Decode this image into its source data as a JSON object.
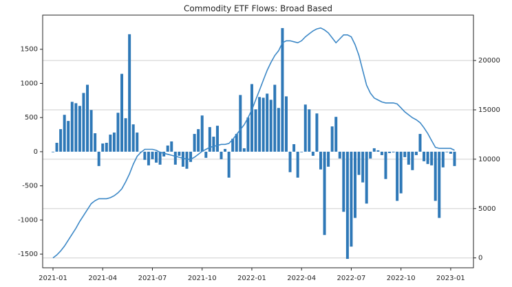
{
  "chart_data": {
    "type": "bar",
    "title": "Commodity ETF Flows: Broad Based",
    "categories": [
      "2021-01",
      null,
      null,
      null,
      null,
      null,
      null,
      null,
      null,
      null,
      null,
      null,
      null,
      "2021-04",
      null,
      null,
      null,
      null,
      null,
      null,
      null,
      null,
      null,
      null,
      null,
      null,
      "2021-07",
      null,
      null,
      null,
      null,
      null,
      null,
      null,
      null,
      null,
      null,
      null,
      null,
      "2021-10",
      null,
      null,
      null,
      null,
      null,
      null,
      null,
      null,
      null,
      null,
      null,
      null,
      "2022-01",
      null,
      null,
      null,
      null,
      null,
      null,
      null,
      null,
      null,
      null,
      null,
      null,
      "2022-04",
      null,
      null,
      null,
      null,
      null,
      null,
      null,
      null,
      null,
      null,
      null,
      null,
      "2022-07",
      null,
      null,
      null,
      null,
      null,
      null,
      null,
      null,
      null,
      null,
      null,
      null,
      "2022-10",
      null,
      null,
      null,
      null,
      null,
      null,
      null,
      null,
      null,
      null,
      null,
      null,
      "2023-01",
      null
    ],
    "series": [
      {
        "type": "bar",
        "color": "#2e78b7",
        "values": [
          0,
          130,
          330,
          540,
          450,
          730,
          710,
          670,
          860,
          980,
          610,
          270,
          -210,
          120,
          130,
          250,
          280,
          570,
          1140,
          490,
          1720,
          400,
          280,
          0,
          -120,
          -200,
          -110,
          -160,
          -190,
          -70,
          90,
          150,
          -190,
          -60,
          -220,
          -250,
          -150,
          260,
          330,
          530,
          -90,
          360,
          220,
          380,
          -110,
          40,
          -380,
          190,
          260,
          830,
          50,
          500,
          990,
          620,
          800,
          790,
          850,
          760,
          980,
          640,
          1810,
          810,
          -300,
          110,
          -380,
          0,
          690,
          620,
          -60,
          560,
          -260,
          -1220,
          -220,
          370,
          510,
          -100,
          -880,
          -1570,
          -1390,
          -970,
          -340,
          -450,
          -760,
          -100,
          50,
          20,
          -50,
          -400,
          -20,
          -10,
          -720,
          -610,
          -80,
          -190,
          -270,
          -50,
          260,
          -140,
          -180,
          -200,
          -720,
          -970,
          -230,
          0,
          -30,
          -210
        ]
      },
      {
        "type": "line",
        "axis": "y2",
        "color": "#3b87c6",
        "values": [
          0,
          300,
          700,
          1200,
          1800,
          2400,
          3000,
          3700,
          4300,
          4900,
          5500,
          5800,
          6000,
          6000,
          6000,
          6100,
          6300,
          6600,
          7000,
          7700,
          8500,
          9500,
          10300,
          10700,
          11000,
          11000,
          11000,
          10900,
          10700,
          10600,
          10500,
          10400,
          10300,
          10200,
          10100,
          10000,
          10000,
          10200,
          10500,
          10800,
          11000,
          11200,
          11300,
          11400,
          11500,
          11500,
          11600,
          12000,
          12500,
          13000,
          13500,
          14200,
          15000,
          16000,
          17000,
          18000,
          19000,
          19800,
          20500,
          21000,
          21800,
          22000,
          22000,
          21900,
          21800,
          22000,
          22400,
          22700,
          23000,
          23200,
          23300,
          23100,
          22800,
          22300,
          21800,
          22200,
          22600,
          22600,
          22400,
          21600,
          20500,
          19000,
          17500,
          16700,
          16200,
          16000,
          15800,
          15700,
          15700,
          15700,
          15600,
          15200,
          14800,
          14500,
          14200,
          14000,
          13700,
          13200,
          12600,
          11900,
          11200,
          11100,
          11100,
          11100,
          11100,
          10900
        ]
      }
    ],
    "ylim": [
      -1700,
      2000
    ],
    "yticks": [
      -1500,
      -1000,
      -500,
      0,
      500,
      1000,
      1500
    ],
    "y2lim": [
      -1000,
      24600
    ],
    "y2ticks": [
      0,
      5000,
      10000,
      15000,
      20000
    ],
    "grid": "y2"
  }
}
